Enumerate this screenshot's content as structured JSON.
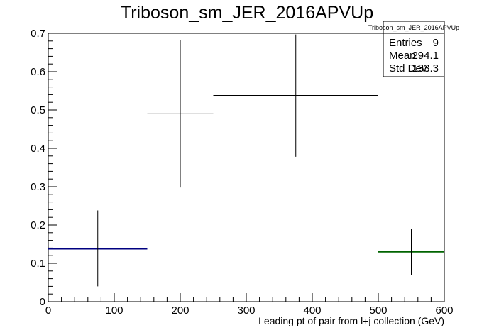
{
  "chart_data": {
    "type": "histogram",
    "title": "Triboson_sm_JER_2016APVUp",
    "xlabel": "Leading pt of pair from l+j collection (GeV)",
    "ylabel": "",
    "xlim": [
      0,
      600
    ],
    "ylim": [
      0,
      0.7
    ],
    "x_ticks": [
      0,
      100,
      200,
      300,
      400,
      500,
      600
    ],
    "y_ticks": [
      0,
      0.1,
      0.2,
      0.3,
      0.4,
      0.5,
      0.6,
      0.7
    ],
    "x_tick_labels": [
      "0",
      "100",
      "200",
      "300",
      "400",
      "500",
      "600"
    ],
    "y_tick_labels": [
      "0",
      "0.1",
      "0.2",
      "0.3",
      "0.4",
      "0.5",
      "0.6",
      "0.7"
    ],
    "grid": false,
    "points": [
      {
        "x_low": 0,
        "x_high": 150,
        "x": 75,
        "y": 0.138,
        "y_low": 0.04,
        "y_high": 0.238,
        "color": "#000080"
      },
      {
        "x_low": 150,
        "x_high": 250,
        "x": 200,
        "y": 0.49,
        "y_low": 0.298,
        "y_high": 0.682,
        "color": "#000000"
      },
      {
        "x_low": 250,
        "x_high": 500,
        "x": 375,
        "y": 0.538,
        "y_low": 0.378,
        "y_high": 0.697,
        "color": "#000000"
      },
      {
        "x_low": 500,
        "x_high": 600,
        "x": 550,
        "y": 0.13,
        "y_low": 0.07,
        "y_high": 0.19,
        "color": "#006400"
      }
    ],
    "stats_box": {
      "name": "Triboson_sm_JER_2016APVUp",
      "rows": [
        {
          "label": "Entries",
          "value": "9"
        },
        {
          "label": "Mean",
          "value": "294.1"
        },
        {
          "label": "Std Dev",
          "value": "133.3"
        }
      ]
    }
  }
}
